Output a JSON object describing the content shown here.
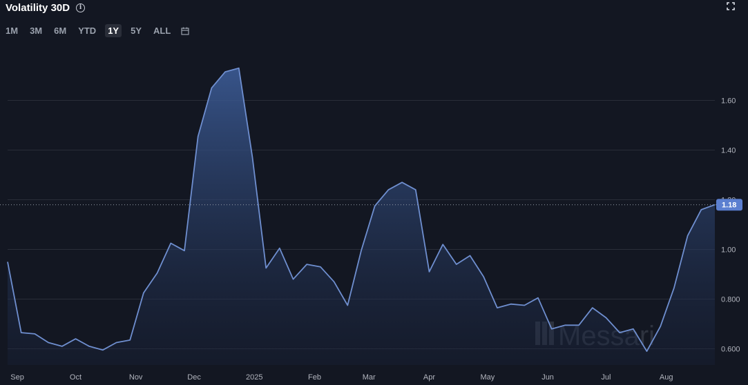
{
  "header": {
    "title": "Volatility 30D",
    "info_icon": "info-circle-icon",
    "fullscreen_icon": "expand-icon"
  },
  "ranges": {
    "items": [
      "1M",
      "3M",
      "6M",
      "YTD",
      "1Y",
      "5Y",
      "ALL"
    ],
    "active": "1Y",
    "calendar_icon": "calendar-icon"
  },
  "watermark": {
    "text": "Messari"
  },
  "colors": {
    "background": "#131722",
    "line": "#6f8fd0",
    "badge": "#5b7fd0"
  },
  "chart_data": {
    "type": "area",
    "ylim": [
      0.56,
      1.82
    ],
    "y_ticks": [
      {
        "value": 0.6,
        "label": "0.600"
      },
      {
        "value": 0.8,
        "label": "0.800"
      },
      {
        "value": 1.0,
        "label": "1.00"
      },
      {
        "value": 1.2,
        "label": "1.20"
      },
      {
        "value": 1.4,
        "label": "1.40"
      },
      {
        "value": 1.6,
        "label": "1.60"
      }
    ],
    "x_ticks": [
      {
        "date": "2024-09-01",
        "label": "Sep"
      },
      {
        "date": "2024-10-01",
        "label": "Oct"
      },
      {
        "date": "2024-11-01",
        "label": "Nov"
      },
      {
        "date": "2024-12-01",
        "label": "Dec"
      },
      {
        "date": "2025-01-01",
        "label": "2025"
      },
      {
        "date": "2025-02-01",
        "label": "Feb"
      },
      {
        "date": "2025-03-01",
        "label": "Mar"
      },
      {
        "date": "2025-04-01",
        "label": "Apr"
      },
      {
        "date": "2025-05-01",
        "label": "May"
      },
      {
        "date": "2025-06-01",
        "label": "Jun"
      },
      {
        "date": "2025-07-01",
        "label": "Jul"
      },
      {
        "date": "2025-08-01",
        "label": "Aug"
      }
    ],
    "last_value": {
      "value": 1.18,
      "label": "1.18"
    },
    "grid": true,
    "series": [
      {
        "x": [
          "2024-08-27",
          "2024-09-03",
          "2024-09-10",
          "2024-09-17",
          "2024-09-24",
          "2024-10-01",
          "2024-10-08",
          "2024-10-15",
          "2024-10-22",
          "2024-10-29",
          "2024-11-05",
          "2024-11-12",
          "2024-11-19",
          "2024-11-26",
          "2024-12-03",
          "2024-12-10",
          "2024-12-17",
          "2024-12-24",
          "2024-12-31",
          "2025-01-07",
          "2025-01-14",
          "2025-01-21",
          "2025-01-28",
          "2025-02-04",
          "2025-02-11",
          "2025-02-18",
          "2025-02-25",
          "2025-03-04",
          "2025-03-11",
          "2025-03-18",
          "2025-03-25",
          "2025-04-01",
          "2025-04-08",
          "2025-04-15",
          "2025-04-22",
          "2025-04-29",
          "2025-05-06",
          "2025-05-13",
          "2025-05-20",
          "2025-05-27",
          "2025-06-03",
          "2025-06-10",
          "2025-06-17",
          "2025-06-24",
          "2025-07-01",
          "2025-07-08",
          "2025-07-15",
          "2025-07-22",
          "2025-07-29",
          "2025-08-05",
          "2025-08-12",
          "2025-08-19",
          "2025-08-26"
        ],
        "values": [
          0.95,
          0.665,
          0.66,
          0.625,
          0.61,
          0.64,
          0.61,
          0.595,
          0.625,
          0.635,
          0.825,
          0.905,
          1.025,
          0.995,
          1.455,
          1.65,
          1.715,
          1.73,
          1.37,
          0.925,
          1.005,
          0.88,
          0.94,
          0.93,
          0.87,
          0.775,
          0.995,
          1.175,
          1.24,
          1.27,
          1.24,
          0.91,
          1.02,
          0.94,
          0.975,
          0.89,
          0.765,
          0.78,
          0.775,
          0.805,
          0.68,
          0.695,
          0.695,
          0.765,
          0.725,
          0.665,
          0.68,
          0.59,
          0.69,
          0.845,
          1.055,
          1.16,
          1.18
        ]
      }
    ]
  }
}
